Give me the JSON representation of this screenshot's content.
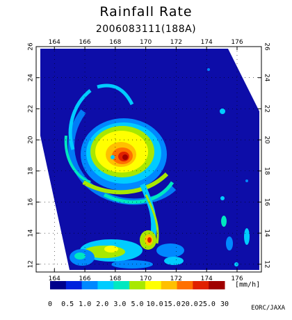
{
  "title": "Rainfall Rate",
  "subtitle": "2006083111(188A)",
  "credit": "EORC/JAXA",
  "colorbar": {
    "unit": "[mm/h]",
    "labels": [
      "0",
      "0.5",
      "1.0",
      "2.0",
      "3.0",
      "5.0",
      "10.0",
      "15.0",
      "20.0",
      "25.0",
      "30"
    ],
    "colors": [
      "#00008c",
      "#0022dd",
      "#0088ff",
      "#00ccff",
      "#00e8c0",
      "#a8e800",
      "#ffff00",
      "#ffc000",
      "#ff7000",
      "#e02000",
      "#a00000"
    ]
  },
  "map": {
    "lon_ticks": [
      164,
      166,
      168,
      170,
      172,
      174,
      176
    ],
    "lat_ticks": [
      12,
      14,
      16,
      18,
      20,
      22,
      24,
      26
    ],
    "lon_range": [
      162.8,
      177.6
    ],
    "lat_range": [
      11.5,
      26
    ],
    "swath_color": "#0d0da8"
  }
}
